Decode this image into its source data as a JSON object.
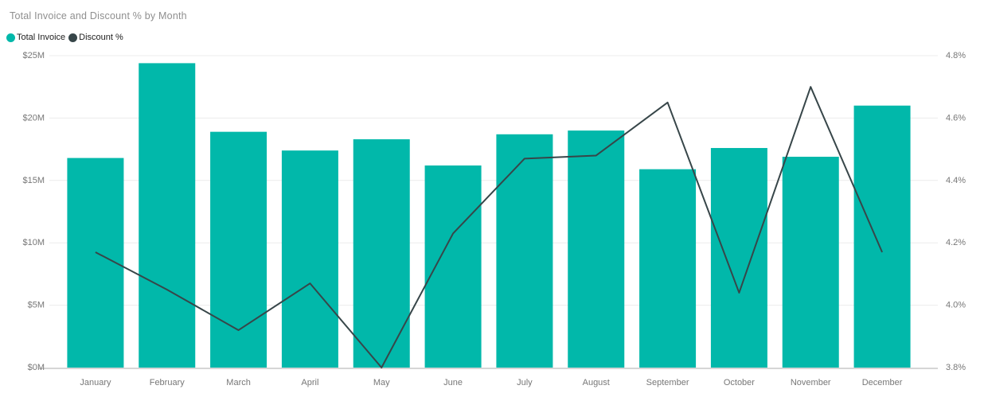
{
  "title": "Total Invoice and Discount % by Month",
  "legend": {
    "items": [
      {
        "label": "Total Invoice",
        "color": "#01B8AA"
      },
      {
        "label": "Discount %",
        "color": "#374649"
      }
    ]
  },
  "chart_data": {
    "type": "combo-bar-line",
    "title": "Total Invoice and Discount % by Month",
    "categories": [
      "January",
      "February",
      "March",
      "April",
      "May",
      "June",
      "July",
      "August",
      "September",
      "October",
      "November",
      "December"
    ],
    "series": [
      {
        "name": "Total Invoice",
        "type": "bar",
        "axis": "left",
        "unit": "USD millions",
        "color": "#01B8AA",
        "values": [
          16.8,
          24.4,
          18.9,
          17.4,
          18.3,
          16.2,
          18.7,
          19.0,
          15.9,
          17.6,
          16.9,
          21.0
        ]
      },
      {
        "name": "Discount %",
        "type": "line",
        "axis": "right",
        "unit": "percent",
        "color": "#374649",
        "values": [
          4.17,
          4.05,
          3.92,
          4.07,
          3.8,
          4.23,
          4.47,
          4.48,
          4.65,
          4.04,
          4.7,
          4.17
        ]
      }
    ],
    "left_axis": {
      "min": 0,
      "max": 25,
      "tick_step": 5,
      "tick_labels": [
        "$0M",
        "$5M",
        "$10M",
        "$15M",
        "$20M",
        "$25M"
      ]
    },
    "right_axis": {
      "min": 3.8,
      "max": 4.8,
      "tick_step": 0.2,
      "tick_labels": [
        "3.8%",
        "4.0%",
        "4.2%",
        "4.4%",
        "4.6%",
        "4.8%"
      ]
    },
    "grid": true,
    "legend_position": "top-left",
    "xlabel": "",
    "ylabel_left": "",
    "ylabel_right": ""
  },
  "colors": {
    "background": "#FFFFFF",
    "title_text": "#8F8F8F",
    "axis_text": "#777777",
    "legend_text": "#212121",
    "gridline": "#ECECEC",
    "axis_line": "#D6D6D6",
    "bar": "#01B8AA",
    "line": "#374649"
  }
}
